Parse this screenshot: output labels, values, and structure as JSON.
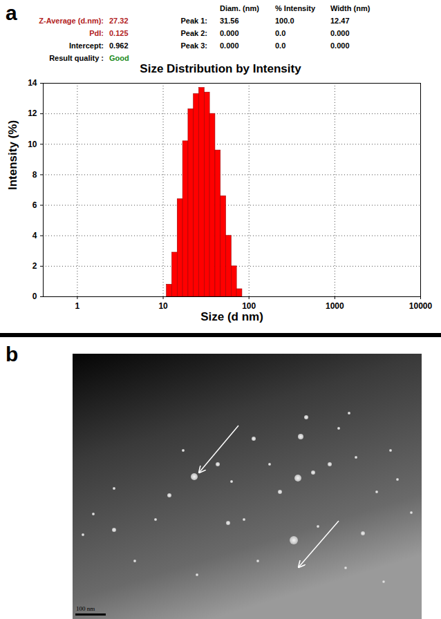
{
  "panel_labels": [
    "a",
    "b"
  ],
  "summary": {
    "rows": [
      {
        "label": "Z-Average (d.nm):",
        "value": "27.32",
        "color": "#b22222"
      },
      {
        "label": "PdI:",
        "value": "0.125",
        "color": "#b22222"
      },
      {
        "label": "Intercept:",
        "value": "0.962",
        "color": "#000000"
      },
      {
        "label": "Result quality :",
        "value": "Good",
        "color": "#000000",
        "value_color": "#1a8a1a"
      }
    ]
  },
  "peaks": {
    "header": [
      "Diam. (nm)",
      "% Intensity",
      "Width (nm)"
    ],
    "rows": [
      {
        "label": "Peak 1:",
        "values": [
          "31.56",
          "100.0",
          "12.47"
        ]
      },
      {
        "label": "Peak 2:",
        "values": [
          "0.000",
          "0.0",
          "0.000"
        ]
      },
      {
        "label": "Peak 3:",
        "values": [
          "0.000",
          "0.0",
          "0.000"
        ]
      }
    ]
  },
  "chart_data": {
    "type": "histogram",
    "title": "Size Distribution by Intensity",
    "x_label": "Size (d nm)",
    "y_label": "Intensity (%)",
    "bins": [
      11.0,
      12.71,
      14.69,
      16.98,
      19.63,
      22.68,
      26.21,
      30.29,
      35.01,
      40.46,
      46.76,
      54.04,
      62.45,
      72.18,
      83.42
    ],
    "counts": [
      0.8,
      2.9,
      6.4,
      10.2,
      12.3,
      13.3,
      13.7,
      13.4,
      12.0,
      9.6,
      6.6,
      4.0,
      2.0,
      0.5
    ],
    "color": "#ff0000",
    "log": "x",
    "xlim": [
      0.4,
      10000
    ],
    "xticks": [
      1,
      10,
      100,
      1000,
      10000
    ],
    "ylim": [
      0,
      14
    ],
    "yticks": [
      0,
      2,
      4,
      6,
      8,
      10,
      12,
      14
    ],
    "grid": true
  },
  "micrograph": {
    "scale_bar": "100 nm"
  }
}
